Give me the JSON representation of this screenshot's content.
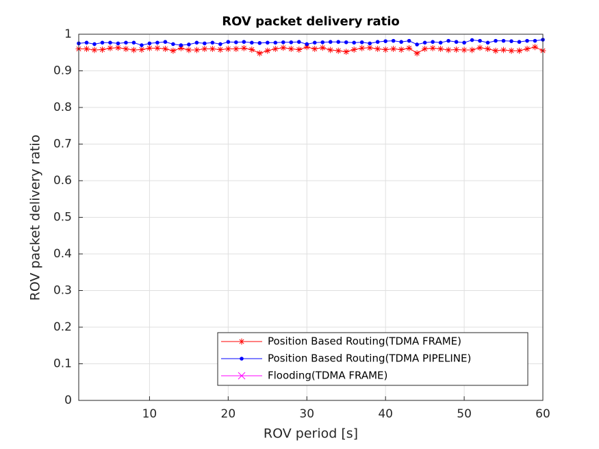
{
  "chart_data": {
    "type": "line",
    "title": "ROV packet delivery ratio",
    "xlabel": "ROV period [s]",
    "ylabel": "ROV packet delivery ratio",
    "x": [
      1,
      2,
      3,
      4,
      5,
      6,
      7,
      8,
      9,
      10,
      11,
      12,
      13,
      14,
      15,
      16,
      17,
      18,
      19,
      20,
      21,
      22,
      23,
      24,
      25,
      26,
      27,
      28,
      29,
      30,
      31,
      32,
      33,
      34,
      35,
      36,
      37,
      38,
      39,
      40,
      41,
      42,
      43,
      44,
      45,
      46,
      47,
      48,
      49,
      50,
      51,
      52,
      53,
      54,
      55,
      56,
      57,
      58,
      59,
      60
    ],
    "series": [
      {
        "name": "Position Based Routing(TDMA FRAME)",
        "color": "#ff0000",
        "marker": "*",
        "values": [
          0.96,
          0.96,
          0.957,
          0.958,
          0.962,
          0.963,
          0.96,
          0.957,
          0.958,
          0.962,
          0.962,
          0.96,
          0.955,
          0.962,
          0.957,
          0.957,
          0.96,
          0.96,
          0.958,
          0.96,
          0.96,
          0.962,
          0.958,
          0.948,
          0.955,
          0.96,
          0.963,
          0.96,
          0.958,
          0.965,
          0.96,
          0.963,
          0.957,
          0.955,
          0.952,
          0.958,
          0.962,
          0.963,
          0.96,
          0.958,
          0.96,
          0.958,
          0.962,
          0.948,
          0.96,
          0.962,
          0.96,
          0.957,
          0.958,
          0.957,
          0.957,
          0.963,
          0.96,
          0.955,
          0.957,
          0.955,
          0.955,
          0.96,
          0.965,
          0.955
        ]
      },
      {
        "name": "Position Based Routing(TDMA PIPELINE)",
        "color": "#0000ff",
        "marker": ".",
        "values": [
          0.975,
          0.977,
          0.973,
          0.977,
          0.977,
          0.975,
          0.977,
          0.977,
          0.97,
          0.975,
          0.977,
          0.979,
          0.973,
          0.97,
          0.972,
          0.977,
          0.975,
          0.977,
          0.973,
          0.979,
          0.978,
          0.979,
          0.977,
          0.976,
          0.977,
          0.977,
          0.978,
          0.978,
          0.979,
          0.973,
          0.977,
          0.978,
          0.979,
          0.979,
          0.978,
          0.977,
          0.978,
          0.975,
          0.979,
          0.981,
          0.982,
          0.979,
          0.982,
          0.972,
          0.977,
          0.979,
          0.977,
          0.982,
          0.979,
          0.977,
          0.984,
          0.982,
          0.977,
          0.982,
          0.982,
          0.981,
          0.979,
          0.982,
          0.982,
          0.985
        ]
      },
      {
        "name": "Flooding(TDMA FRAME)",
        "color": "#ff00ff",
        "marker": "x",
        "values": [
          null,
          null,
          null,
          null,
          null,
          null,
          null,
          null,
          null,
          null,
          null,
          null,
          null,
          null,
          null,
          null,
          null,
          null,
          null,
          null,
          null,
          null,
          null,
          null,
          null,
          null,
          null,
          null,
          null,
          null,
          null,
          null,
          null,
          null,
          null,
          null,
          null,
          null,
          null,
          null,
          null,
          null,
          null,
          null,
          null,
          null,
          null,
          null,
          null,
          null,
          null,
          null,
          null,
          null,
          null,
          null,
          null,
          null,
          null,
          null
        ]
      }
    ],
    "xlim": [
      1,
      60
    ],
    "xticks": [
      10,
      20,
      30,
      40,
      50,
      60
    ],
    "ylim": [
      0,
      1
    ],
    "yticks": [
      0,
      0.1,
      0.2,
      0.3,
      0.4,
      0.5,
      0.6,
      0.7,
      0.8,
      0.9,
      1
    ],
    "grid": true,
    "legend": "south-east"
  }
}
